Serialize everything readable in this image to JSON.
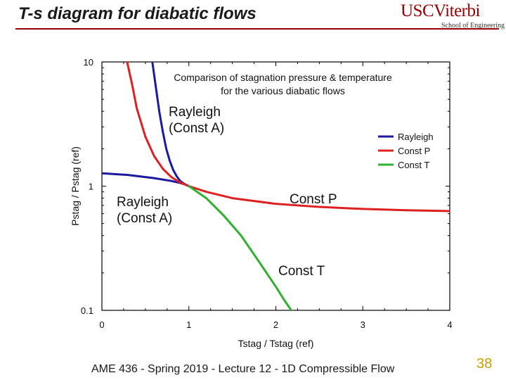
{
  "slide": {
    "title": "T-s diagram for diabatic flows",
    "logo_main": "USCViterbi",
    "logo_sub": "School of Engineering",
    "footer": "AME 436 - Spring 2019 - Lecture 12 - 1D Compressible Flow",
    "page_number": "38"
  },
  "chart_data": {
    "type": "line",
    "title_lines": [
      "Comparison of stagnation pressure & temperature",
      "for the various diabatic flows"
    ],
    "xlabel": "Tstag / Tstag (ref)",
    "ylabel": "Pstag / Pstag (ref)",
    "xlim": [
      0,
      4
    ],
    "ylim": [
      0.1,
      10
    ],
    "yscale": "log",
    "xticks": [
      0,
      1,
      2,
      3,
      4
    ],
    "xtick_labels": [
      "0",
      "1",
      "2",
      "3",
      "4"
    ],
    "yticks": [
      0.1,
      1,
      10
    ],
    "ytick_labels": [
      "0.1",
      "1",
      "10"
    ],
    "legend_position": "right",
    "series": [
      {
        "name": "Rayleigh",
        "color": "#1a1aa0",
        "x": [
          0,
          0.3,
          0.6,
          0.8,
          0.9,
          0.95,
          1.0
        ],
        "y": [
          1.268,
          1.23,
          1.16,
          1.1,
          1.06,
          1.035,
          1.0
        ]
      },
      {
        "name": "Rayleigh",
        "color": "#1a1aa0",
        "x": [
          0.58,
          0.62,
          0.66,
          0.7,
          0.74,
          0.78,
          0.82,
          0.86,
          0.9,
          0.95,
          1.0
        ],
        "y": [
          10,
          6.3,
          3.98,
          2.75,
          2.0,
          1.6,
          1.35,
          1.2,
          1.1,
          1.04,
          1.0
        ]
      },
      {
        "name": "Const P",
        "color": "#dd2020",
        "x": [
          0.29,
          0.35,
          0.4,
          0.5,
          0.6,
          0.7,
          0.8,
          0.9,
          1.0,
          1.2,
          1.5,
          2.0,
          2.5,
          3.0,
          3.5,
          4.0
        ],
        "y": [
          10,
          6.45,
          4.25,
          2.5,
          1.75,
          1.38,
          1.18,
          1.07,
          1.0,
          0.9,
          0.8,
          0.72,
          0.68,
          0.655,
          0.64,
          0.63
        ]
      },
      {
        "name": "Const T",
        "color": "#30b030",
        "x": [
          1.0,
          1.2,
          1.4,
          1.6,
          1.8,
          2.0,
          2.1,
          2.2
        ],
        "y": [
          1.0,
          0.8,
          0.58,
          0.4,
          0.25,
          0.155,
          0.12,
          0.095
        ]
      }
    ],
    "annotations": [
      {
        "text_lines": [
          "Rayleigh",
          "(Const A)"
        ],
        "near": "upper"
      },
      {
        "text_lines": [
          "Rayleigh",
          "(Const A)"
        ],
        "near": "lower-left"
      },
      {
        "text_lines": [
          "Const P"
        ],
        "near": "right"
      },
      {
        "text_lines": [
          "Const T"
        ],
        "near": "lower"
      }
    ]
  }
}
